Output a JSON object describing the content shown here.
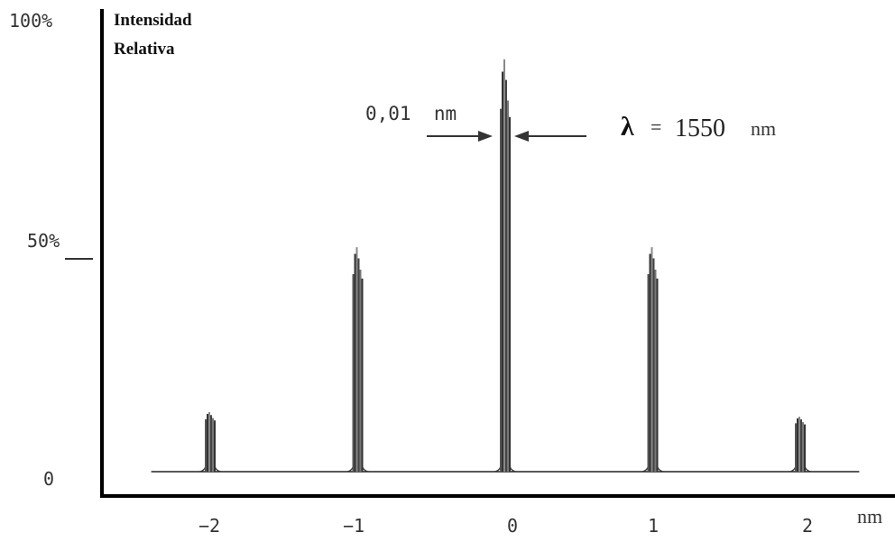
{
  "chart_data": {
    "type": "line",
    "title": "",
    "ylabel_line1": "Intensidad",
    "ylabel_line2": "Relativa",
    "xunit": "nm",
    "xlim": [
      -2.4,
      2.4
    ],
    "ylim": [
      0,
      100
    ],
    "x_ticks": [
      {
        "value": -2,
        "label": "−2"
      },
      {
        "value": -1,
        "label": "−1"
      },
      {
        "value": 0,
        "label": "0"
      },
      {
        "value": 1,
        "label": "1"
      },
      {
        "value": 2,
        "label": "2"
      }
    ],
    "y_ticks": [
      {
        "value": 0,
        "label": "0"
      },
      {
        "value": 50,
        "label": "50%"
      },
      {
        "value": 100,
        "label": "100%"
      }
    ],
    "peaks": [
      {
        "x": -2,
        "height": 13
      },
      {
        "x": -1,
        "height": 49
      },
      {
        "x": 0,
        "height": 90
      },
      {
        "x": 1,
        "height": 49
      },
      {
        "x": 2,
        "height": 12
      }
    ],
    "linewidth_label": "0,01  nm",
    "lambda_symbol": "λ",
    "lambda_equals": "=",
    "lambda_value": "1550",
    "lambda_unit": "nm"
  }
}
